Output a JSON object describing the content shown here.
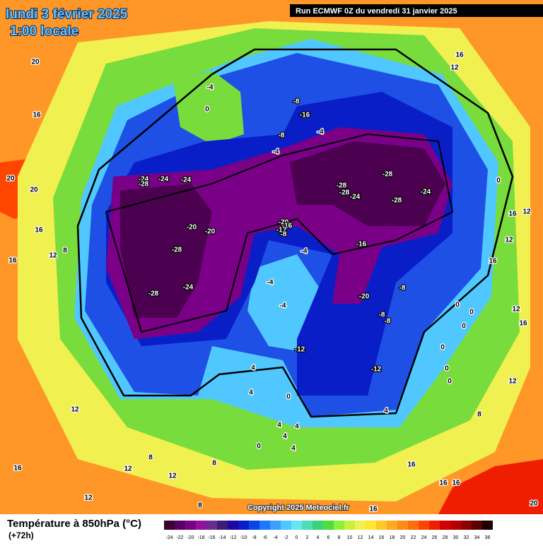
{
  "header": {
    "date": "lundi 3 février 2025",
    "time": "1:00 locale",
    "run": "Run ECMWF 0Z du vendredi 31 janvier 2025"
  },
  "copyright": "Copyright 2025 Meteociel.fr",
  "footer": {
    "title": "Température à 850hPa (°C)",
    "lead": "(+72h)"
  },
  "map_labels": [
    20,
    16,
    20,
    20,
    16,
    12,
    8,
    16,
    -4,
    0,
    -8,
    -16,
    -8,
    -4,
    -4,
    -24,
    -28,
    -24,
    -24,
    -28,
    -28,
    -28,
    -24,
    -24,
    -28,
    0,
    16,
    12,
    -20,
    -20,
    -20,
    -16,
    -12,
    -8,
    -16,
    -28,
    -4,
    16,
    12,
    -4,
    -8,
    -28,
    -24,
    -4,
    -20,
    -8,
    -8,
    0,
    0,
    12,
    16,
    0,
    0,
    -12,
    -12,
    0,
    0,
    4,
    4,
    0,
    4,
    8,
    4,
    4,
    4,
    0,
    4,
    12,
    8,
    12,
    8,
    12,
    16,
    12,
    8,
    16,
    16,
    16,
    16,
    20,
    12,
    16,
    12
  ],
  "colorbar": {
    "labels": [
      -24,
      -22,
      -20,
      -18,
      -16,
      -14,
      -12,
      -10,
      -8,
      -6,
      -4,
      -2,
      0,
      2,
      4,
      6,
      8,
      10,
      12,
      14,
      16,
      18,
      20,
      22,
      24,
      26,
      28,
      30,
      32,
      34,
      36
    ],
    "colors": [
      "#3c0032",
      "#5a0064",
      "#7a0088",
      "#96109c",
      "#6c2c8c",
      "#3c1c78",
      "#1e0aa0",
      "#0a1ec8",
      "#0a46e6",
      "#1e78ff",
      "#3ca0ff",
      "#50c8ff",
      "#64e6f0",
      "#50dcb4",
      "#3cd278",
      "#50dc3c",
      "#8cf03c",
      "#c8f03c",
      "#f0f050",
      "#ffe632",
      "#ffc828",
      "#ffaa1e",
      "#ff8c14",
      "#ff6e0a",
      "#ff4600",
      "#f01e00",
      "#d20000",
      "#b40000",
      "#8c0000",
      "#5a0000",
      "#1e0000"
    ]
  }
}
